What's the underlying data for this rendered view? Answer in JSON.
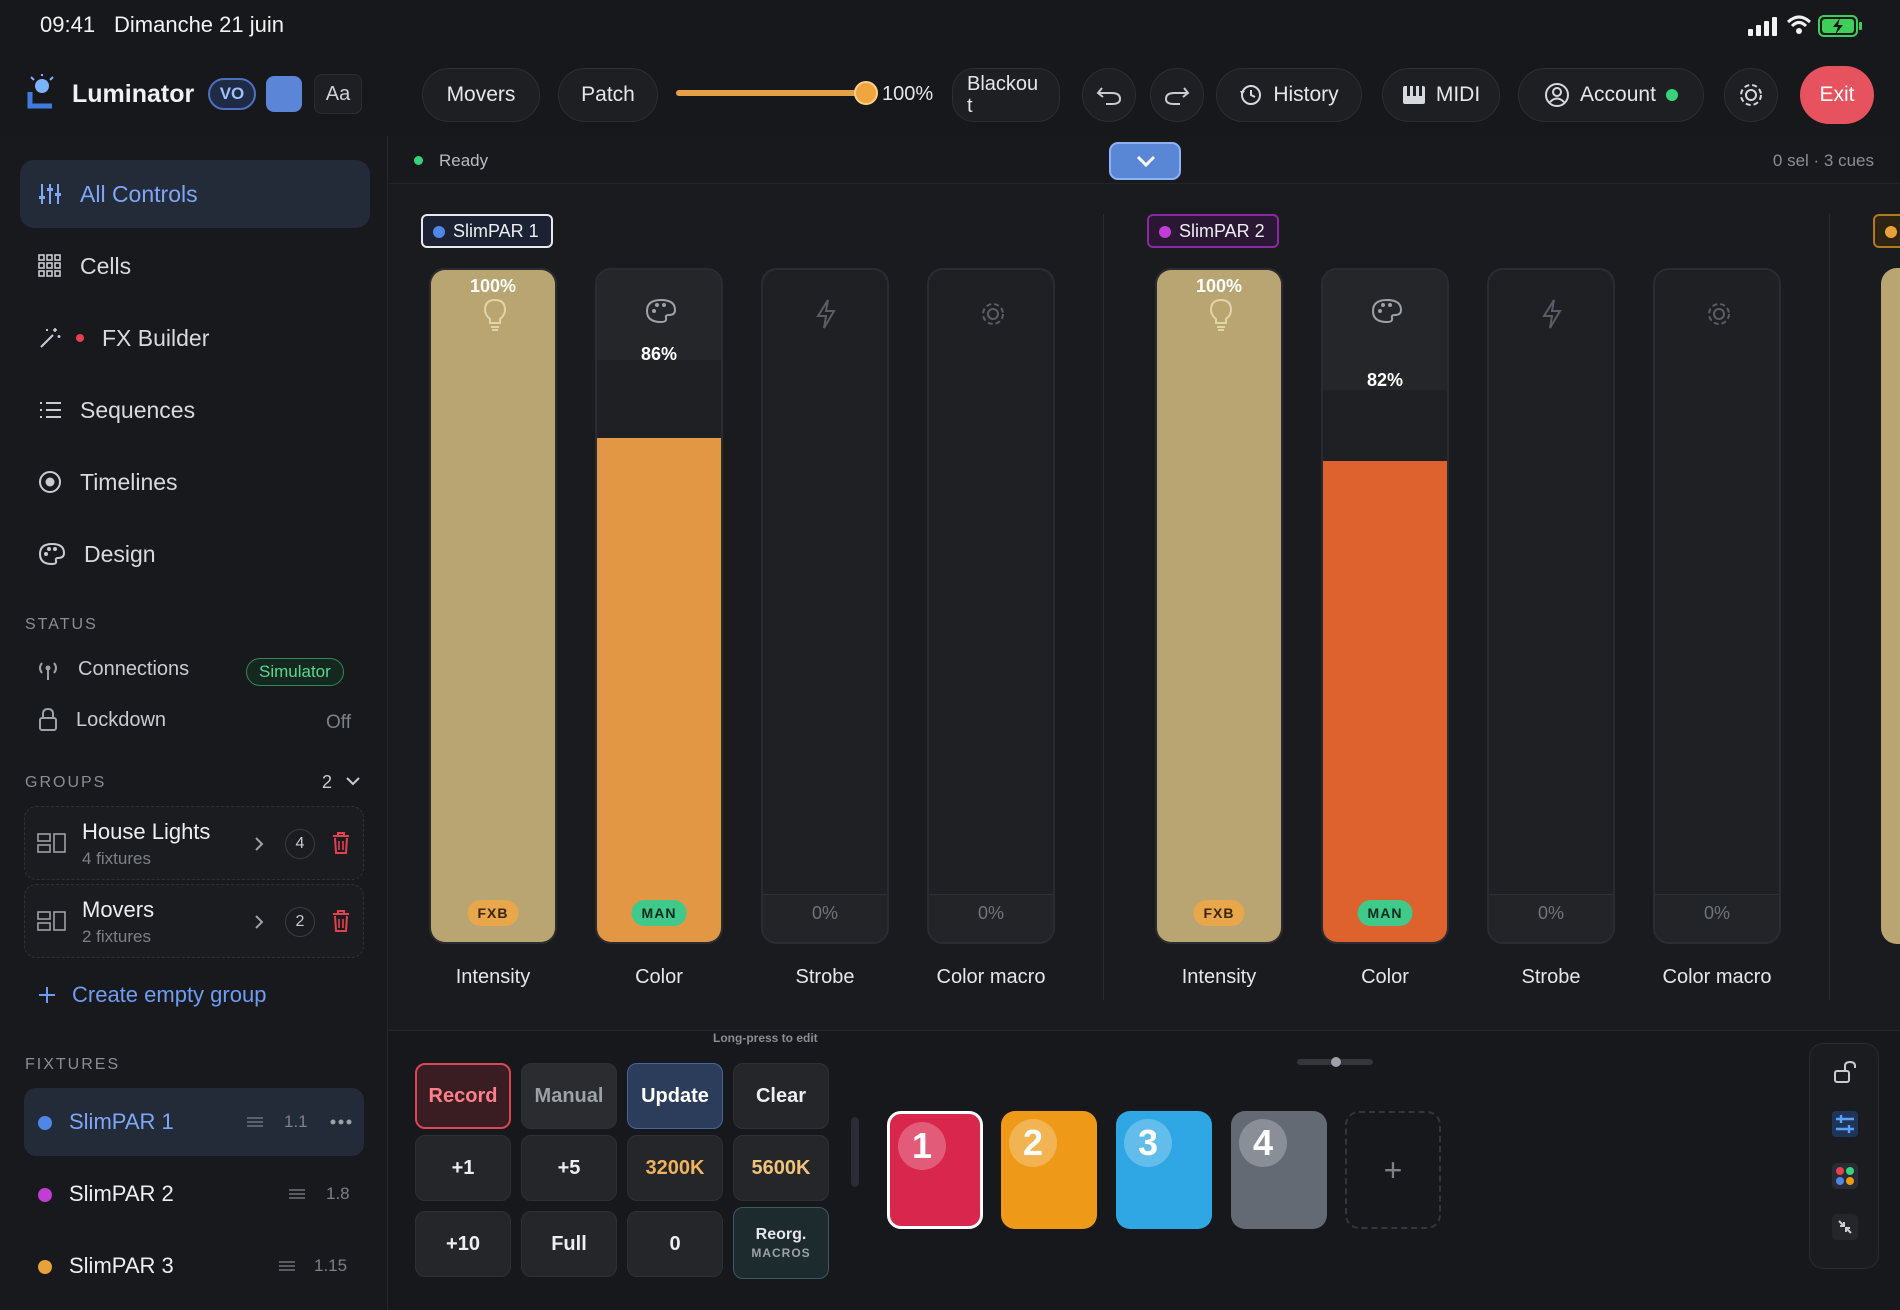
{
  "status_bar": {
    "time": "09:41",
    "date": "Dimanche 21 juin"
  },
  "toolbar": {
    "app_name": "Luminator",
    "version_badge": "VO",
    "font_button": "Aa",
    "movers": "Movers",
    "patch": "Patch",
    "master_level": 1.0,
    "master_percent": "100%",
    "blackout_line1": "Blackou",
    "blackout_line2": "t",
    "history": "History",
    "midi": "MIDI",
    "account": "Account",
    "exit": "Exit"
  },
  "sidebar": {
    "nav": [
      {
        "label": "All Controls",
        "icon": "sliders-icon",
        "active": true
      },
      {
        "label": "Cells",
        "icon": "grid-icon"
      },
      {
        "label": "FX Builder",
        "icon": "magic-wand-icon"
      },
      {
        "label": "Sequences",
        "icon": "list-icon"
      },
      {
        "label": "Timelines",
        "icon": "record-icon"
      },
      {
        "label": "Design",
        "icon": "palette-icon"
      }
    ],
    "status_title": "STATUS",
    "connections": {
      "label": "Connections",
      "value": "Simulator"
    },
    "lockdown": {
      "label": "Lockdown",
      "value": "Off"
    },
    "groups_title": "GROUPS",
    "groups_count": "2",
    "groups": [
      {
        "name": "House Lights",
        "sub": "4 fixtures",
        "count": "4"
      },
      {
        "name": "Movers",
        "sub": "2 fixtures",
        "count": "2"
      }
    ],
    "create_group": "Create empty group",
    "fixtures_title": "FIXTURES",
    "fixtures": [
      {
        "name": "SlimPAR 1",
        "addr": "1.1",
        "color": "#4f86e8",
        "active": true
      },
      {
        "name": "SlimPAR 2",
        "addr": "1.8",
        "color": "#c23cd8"
      },
      {
        "name": "SlimPAR 3",
        "addr": "1.15",
        "color": "#e8a23a"
      }
    ]
  },
  "main": {
    "status": "Ready",
    "selection_info": "0 sel · 3 cues",
    "fixtures": [
      {
        "name": "SlimPAR 1",
        "dot_color": "#4f86e8",
        "channels": [
          {
            "label": "Intensity",
            "value": "100%",
            "level": 1.0,
            "badge": "FXB",
            "fill": "#b8a572"
          },
          {
            "label": "Color",
            "value": "86%",
            "level": 0.86,
            "badge": "MAN",
            "fill": "#e29744"
          },
          {
            "label": "Strobe",
            "value": "0%",
            "level": 0
          },
          {
            "label": "Color macro",
            "value": "0%",
            "level": 0
          }
        ]
      },
      {
        "name": "SlimPAR 2",
        "dot_color": "#c23cd8",
        "channels": [
          {
            "label": "Intensity",
            "value": "100%",
            "level": 1.0,
            "badge": "FXB",
            "fill": "#b8a572"
          },
          {
            "label": "Color",
            "value": "82%",
            "level": 0.82,
            "badge": "MAN",
            "fill": "#de622e"
          },
          {
            "label": "Strobe",
            "value": "0%",
            "level": 0
          },
          {
            "label": "Color macro",
            "value": "0%",
            "level": 0
          }
        ]
      }
    ]
  },
  "bottom": {
    "hint": "Long-press to edit",
    "keys": {
      "record": "Record",
      "manual": "Manual",
      "update": "Update",
      "clear": "Clear",
      "p1": "+1",
      "p5": "+5",
      "k3200": "3200K",
      "k5600": "5600K",
      "p10": "+10",
      "full": "Full",
      "zero": "0",
      "reorg": "Reorg.",
      "macros": "MACROS"
    },
    "cues": [
      {
        "num": "1",
        "color": "#d8264c"
      },
      {
        "num": "2",
        "color": "#ee9a18"
      },
      {
        "num": "3",
        "color": "#2fa7e4"
      },
      {
        "num": "4",
        "color": "#636a74"
      }
    ],
    "add_cue": "+"
  }
}
